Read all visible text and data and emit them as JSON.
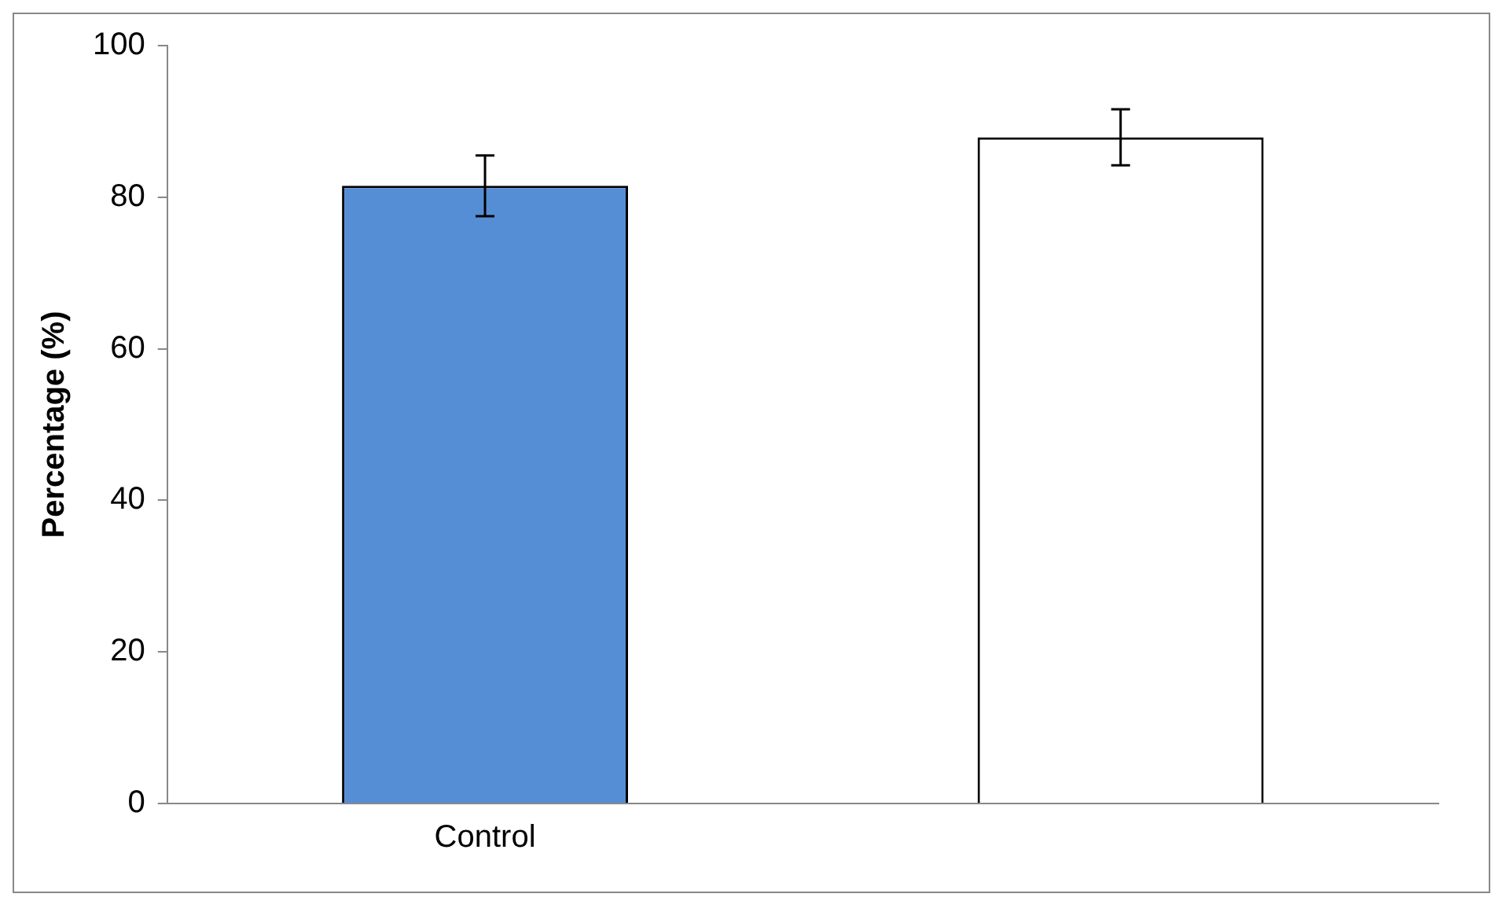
{
  "chart_data": {
    "type": "bar",
    "ylabel": "Percentage (%)",
    "categories": [
      "Control",
      null
    ],
    "values": [
      81.5,
      87.9
    ],
    "colors": [
      "#558ed5",
      "#ffffff"
    ],
    "errors": [
      4.0,
      3.7
    ],
    "ylim": [
      0,
      100
    ],
    "yticks": [
      0,
      20,
      40,
      60,
      80,
      100
    ],
    "grid": false,
    "legend": false
  }
}
